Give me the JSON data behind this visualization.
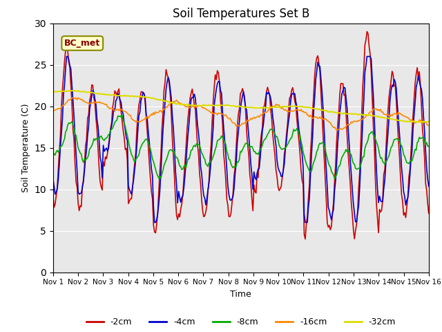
{
  "title": "Soil Temperatures Set B",
  "xlabel": "Time",
  "ylabel": "Soil Temperature (C)",
  "ylim": [
    0,
    30
  ],
  "xlim": [
    0,
    15
  ],
  "x_tick_labels": [
    "Nov 1",
    "Nov 2",
    "Nov 3",
    "Nov 4",
    "Nov 5",
    "Nov 6",
    "Nov 7",
    "Nov 8",
    "Nov 9",
    "Nov 10",
    "Nov 11",
    "Nov 12",
    "Nov 13",
    "Nov 14",
    "Nov 15",
    "Nov 16"
  ],
  "annotation_text": "BC_met",
  "colors": {
    "-2cm": "#cc0000",
    "-4cm": "#0000cc",
    "-8cm": "#00aa00",
    "-16cm": "#ff8800",
    "-32cm": "#dddd00"
  },
  "legend_labels": [
    "-2cm",
    "-4cm",
    "-8cm",
    "-16cm",
    "-32cm"
  ],
  "bg_color": "#e8e8e8",
  "fig_color": "#ffffff"
}
